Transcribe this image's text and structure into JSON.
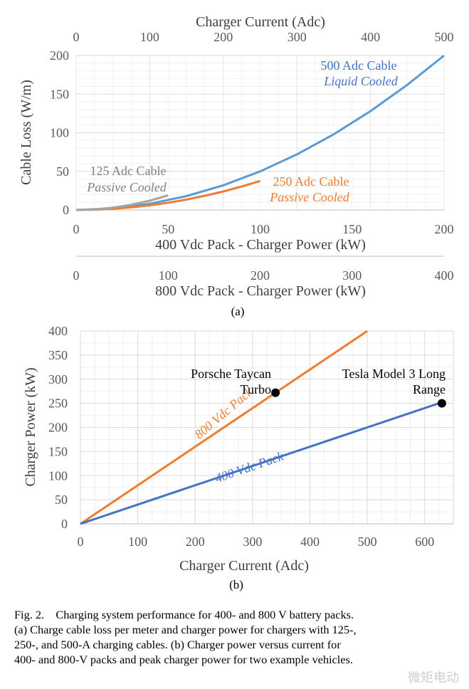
{
  "chart_data": [
    {
      "type": "line",
      "label": "(a)",
      "ylabel": "Cable Loss (W/m)",
      "ylim": [
        0,
        200
      ],
      "yticks": [
        0,
        50,
        100,
        150,
        200
      ],
      "top_axis": {
        "title": "Charger Current (Adc)",
        "range": [
          0,
          500
        ],
        "ticks": [
          0,
          100,
          200,
          300,
          400,
          500
        ]
      },
      "bottom_axis_1": {
        "title": "400 Vdc Pack - Charger Power (kW)",
        "range": [
          0,
          200
        ],
        "ticks": [
          0,
          50,
          100,
          150,
          200
        ]
      },
      "bottom_axis_2": {
        "title": "800 Vdc Pack - Charger Power (kW)",
        "range": [
          0,
          400
        ],
        "ticks": [
          0,
          100,
          200,
          300,
          400
        ]
      },
      "grid": true,
      "series": [
        {
          "name": "500 Adc Cable",
          "subtitle": "Liquid Cooled",
          "color": "#5b9bd5",
          "x_current": [
            0,
            50,
            100,
            150,
            200,
            250,
            300,
            350,
            400,
            450,
            500
          ],
          "y": [
            0,
            2,
            8,
            18,
            32,
            50,
            72,
            98,
            128,
            162,
            200
          ]
        },
        {
          "name": "250 Adc Cable",
          "subtitle": "Passive Cooled",
          "color": "#ed7d31",
          "x_current": [
            0,
            25,
            50,
            75,
            100,
            125,
            150,
            175,
            200,
            225,
            250
          ],
          "y": [
            0,
            0.4,
            1.5,
            3.4,
            6,
            9.4,
            13.5,
            18.4,
            24,
            30.4,
            37.5
          ]
        },
        {
          "name": "125 Adc Cable",
          "subtitle": "Passive Cooled",
          "color": "#a5a5a5",
          "x_current": [
            0,
            25,
            50,
            75,
            100,
            125
          ],
          "y": [
            0,
            0.8,
            3,
            6.8,
            12,
            19
          ]
        }
      ]
    },
    {
      "type": "line",
      "label": "(b)",
      "xlabel": "Charger Current (Adc)",
      "ylabel": "Charger Power (kW)",
      "xlim": [
        0,
        650
      ],
      "ylim": [
        0,
        400
      ],
      "xticks": [
        0,
        100,
        200,
        300,
        400,
        500,
        600
      ],
      "yticks": [
        0,
        50,
        100,
        150,
        200,
        250,
        300,
        350,
        400
      ],
      "grid": true,
      "series": [
        {
          "name": "800 Vdc Pack",
          "color": "#ed7d31",
          "x": [
            0,
            500
          ],
          "y": [
            0,
            400
          ]
        },
        {
          "name": "400 Vdc Pack",
          "color": "#4472c4",
          "x": [
            0,
            632
          ],
          "y": [
            0,
            252.8
          ]
        }
      ],
      "points": [
        {
          "name": "Porsche Taycan Turbo",
          "label_lines": [
            "Porsche Taycan",
            "Turbo"
          ],
          "x": 340,
          "y": 272
        },
        {
          "name": "Tesla Model 3 Long Range",
          "label_lines": [
            "Tesla Model 3 Long",
            "Range"
          ],
          "x": 630,
          "y": 250
        }
      ]
    }
  ],
  "caption": {
    "line1": "Fig. 2.    Charging system performance for 400- and 800 V battery packs.",
    "line2": "(a) Charge cable loss per meter and charger power for chargers with 125-,",
    "line3": "250-, and 500-A charging cables. (b) Charger power versus current for",
    "line4": "400- and 800-V packs and peak charger power for two example vehicles."
  },
  "watermark": "微矩电动"
}
